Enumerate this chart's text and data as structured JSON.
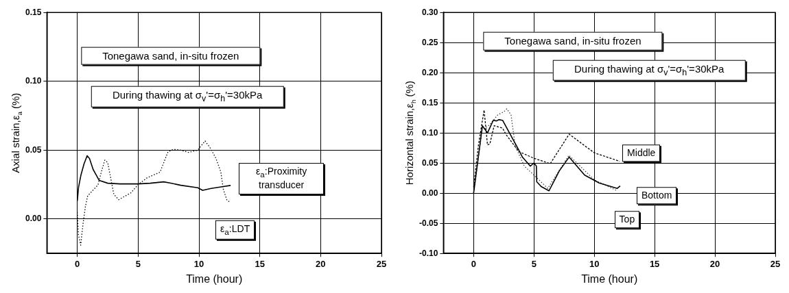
{
  "chart_data": [
    {
      "type": "line",
      "xlabel": "Time (hour)",
      "ylabel": "Axial strain,ε$_{a}$ (%)",
      "annotations": [
        "Tonegawa sand, in-situ frozen",
        "During thawing at σ$_{v}$'=σ$_{h}$'=30kPa"
      ],
      "xlim": [
        -2.5,
        25
      ],
      "xticks": [
        0,
        5,
        10,
        15,
        20,
        25
      ],
      "ylim": [
        -0.025,
        0.15
      ],
      "yticks": [
        {
          "value": 0,
          "label": "0.00"
        },
        {
          "value": 0.05,
          "label": "0.05"
        },
        {
          "value": 0.1,
          "label": "0.10"
        },
        {
          "value": 0.15,
          "label": "0.15"
        }
      ],
      "grid": true,
      "legend": false,
      "marker": "none",
      "series": [
        {
          "name": "ε$_{a}$:Proximity transducer",
          "color": "#000000",
          "line_style": "solid",
          "x": [
            0,
            0.1,
            0.3,
            0.55,
            0.81,
            1.0,
            1.3,
            1.8,
            2.5,
            3.5,
            5,
            6,
            7.1,
            7.6,
            8.5,
            9.9,
            10.3,
            11,
            12,
            12.6
          ],
          "values": [
            0.013,
            0.023,
            0.032,
            0.04,
            0.046,
            0.044,
            0.036,
            0.028,
            0.026,
            0.0255,
            0.0255,
            0.026,
            0.027,
            0.0262,
            0.0245,
            0.0227,
            0.0208,
            0.0222,
            0.0236,
            0.0244
          ]
        },
        {
          "name": "ε$_{a}$:LDT",
          "color": "#000000",
          "line_style": "dotted",
          "x": [
            0,
            0.1,
            0.28,
            0.45,
            0.66,
            0.85,
            1.3,
            1.7,
            2.0,
            2.26,
            2.5,
            3.0,
            3.4,
            4.4,
            5,
            5.75,
            6.8,
            7.45,
            7.9,
            8.5,
            9.15,
            9.9,
            10.5,
            10.9,
            11.4,
            11.8,
            12.0,
            12.3,
            12.6
          ],
          "values": [
            0.005,
            -0.012,
            -0.019,
            -0.005,
            0.0088,
            0.0168,
            0.021,
            0.0248,
            0.035,
            0.0428,
            0.041,
            0.018,
            0.014,
            0.019,
            0.025,
            0.03,
            0.034,
            0.0487,
            0.0506,
            0.05,
            0.0484,
            0.05,
            0.0567,
            0.052,
            0.044,
            0.034,
            0.0216,
            0.0136,
            0.012
          ]
        }
      ]
    },
    {
      "type": "line",
      "xlabel": "Time (hour)",
      "ylabel": "Horizontal strain,ε$_{h}$ (%)",
      "annotations": [
        "Tonegawa sand, in-situ frozen",
        "During thawing at σ$_{v}$'=σ$_{h}$'=30kPa"
      ],
      "xlim": [
        -2.5,
        25
      ],
      "xticks": [
        0,
        5,
        10,
        15,
        20,
        25
      ],
      "ylim": [
        -0.1,
        0.3
      ],
      "yticks": [
        {
          "value": -0.1,
          "label": "-0.10"
        },
        {
          "value": -0.05,
          "label": "-0.05"
        },
        {
          "value": 0,
          "label": "0.00"
        },
        {
          "value": 0.05,
          "label": "0.05"
        },
        {
          "value": 0.1,
          "label": "0.10"
        },
        {
          "value": 0.15,
          "label": "0.15"
        },
        {
          "value": 0.2,
          "label": "0.20"
        },
        {
          "value": 0.25,
          "label": "0.25"
        },
        {
          "value": 0.3,
          "label": "0.30"
        }
      ],
      "grid": true,
      "legend": false,
      "marker": "none",
      "series": [
        {
          "name": "Middle",
          "color": "#000000",
          "line_style": "dashed",
          "x": [
            0,
            0.4,
            0.87,
            1.15,
            1.35,
            1.7,
            2.4,
            2.7,
            3.75,
            5,
            6.35,
            7.92,
            10,
            12.1
          ],
          "values": [
            0.01,
            0.08,
            0.138,
            0.08,
            0.082,
            0.112,
            0.108,
            0.097,
            0.069,
            0.058,
            0.049,
            0.098,
            0.067,
            0.053
          ]
        },
        {
          "name": "Bottom",
          "color": "#000000",
          "line_style": "solid",
          "x": [
            0,
            0.73,
            1.15,
            1.63,
            1.9,
            2.1,
            2.4,
            2.7,
            3.65,
            4.04,
            4.7,
            5.0,
            5.2,
            5.23,
            5.6,
            6.25,
            7.1,
            7.92,
            9.2,
            10.4,
            11.9,
            12.15
          ],
          "values": [
            0.0,
            0.112,
            0.1,
            0.121,
            0.12,
            0.122,
            0.121,
            0.11,
            0.075,
            0.06,
            0.045,
            0.05,
            0.045,
            0.019,
            0.011,
            0.004,
            0.037,
            0.06,
            0.03,
            0.017,
            0.008,
            0.012
          ]
        },
        {
          "name": "Top",
          "color": "#444444",
          "line_style": "dotted",
          "x": [
            0,
            0.7,
            1.3,
            2.0,
            2.5,
            2.75,
            3.1,
            3.45,
            4.2,
            5,
            6.15,
            7.9,
            10,
            11.9
          ],
          "values": [
            0.0,
            0.105,
            0.113,
            0.13,
            0.135,
            0.14,
            0.13,
            0.078,
            0.045,
            0.03,
            0.008,
            0.063,
            0.022,
            0.004
          ]
        }
      ]
    }
  ]
}
